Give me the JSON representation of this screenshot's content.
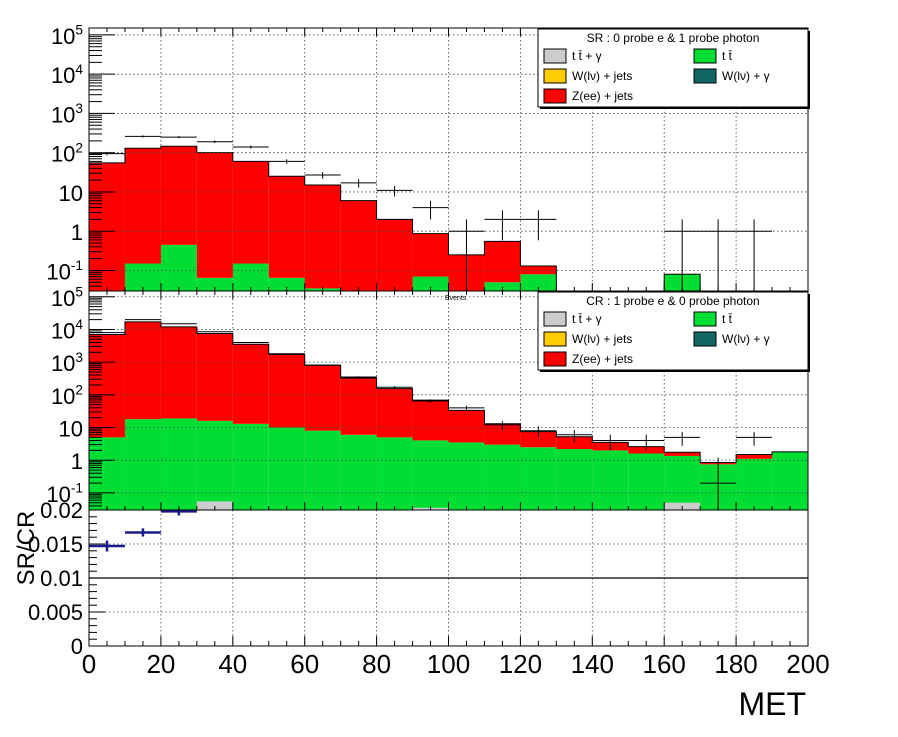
{
  "chart_data": [
    {
      "type": "bar",
      "stacked": true,
      "yscale": "log",
      "xlim": [
        0,
        200
      ],
      "ylim": [
        0.03,
        150000
      ],
      "bin_edges": [
        0,
        10,
        20,
        30,
        40,
        50,
        60,
        70,
        80,
        90,
        100,
        110,
        120,
        130,
        140,
        150,
        160,
        170,
        180,
        190,
        200
      ],
      "y_tick_labels": [
        "10^-1",
        "1",
        "10",
        "10^2",
        "10^3",
        "10^4",
        "10^5"
      ],
      "legend": {
        "title": "SR : 0 probe e & 1 probe photon",
        "placement": "top-right",
        "entries": [
          {
            "label": "t t̄ + γ",
            "color": "#cccccc"
          },
          {
            "label": "t t̄",
            "color": "#00dd33"
          },
          {
            "label": "W(lν) + jets",
            "color": "#ffcc00"
          },
          {
            "label": "W(lν) + γ",
            "color": "#116666"
          },
          {
            "label": "Z(ee) + jets",
            "color": "#ff0000"
          }
        ]
      },
      "series": [
        {
          "values": [
            0,
            0,
            0,
            0,
            0,
            0,
            0,
            0,
            0,
            0,
            0,
            0,
            0,
            0,
            0,
            0,
            0,
            0,
            0,
            0
          ],
          "color": "#cccccc"
        },
        {
          "values": [
            0,
            0.15,
            0.45,
            0.065,
            0.15,
            0.065,
            0.035,
            0.03,
            0,
            0.07,
            0,
            0.05,
            0.08,
            0,
            0,
            0,
            0.08,
            0,
            0,
            0
          ],
          "color": "#00dd33"
        },
        {
          "values": [
            0,
            0,
            0,
            0,
            0,
            0,
            0,
            0,
            0,
            0,
            0,
            0,
            0,
            0,
            0,
            0,
            0,
            0,
            0,
            0
          ],
          "color": "#ffcc00"
        },
        {
          "values": [
            0,
            0,
            0,
            0,
            0,
            0,
            0,
            0,
            0,
            0,
            0,
            0,
            0,
            0,
            0,
            0,
            0,
            0,
            0,
            0
          ],
          "color": "#116666"
        },
        {
          "values": [
            55,
            130,
            145,
            100,
            60,
            25,
            15,
            6,
            2,
            0.8,
            0.25,
            0.5,
            0.05,
            0,
            0,
            0,
            0,
            0,
            0,
            0
          ],
          "color": "#ff0000"
        }
      ],
      "data_points": {
        "x": [
          5,
          15,
          25,
          35,
          45,
          55,
          65,
          75,
          85,
          95,
          105,
          115,
          125,
          165,
          175,
          185
        ],
        "y": [
          95,
          260,
          250,
          190,
          140,
          60,
          27,
          17,
          11,
          4,
          1,
          2,
          2,
          1,
          1,
          1
        ]
      }
    },
    {
      "type": "bar",
      "stacked": true,
      "yscale": "log",
      "xlim": [
        0,
        200
      ],
      "ylim": [
        0.03,
        150000
      ],
      "bin_edges": [
        0,
        10,
        20,
        30,
        40,
        50,
        60,
        70,
        80,
        90,
        100,
        110,
        120,
        130,
        140,
        150,
        160,
        170,
        180,
        190,
        200
      ],
      "y_tick_labels": [
        "10^-1",
        "1",
        "10",
        "10^2",
        "10^3",
        "10^4",
        "10^5"
      ],
      "annotation": "Events",
      "legend": {
        "title": "CR : 1 probe e & 0 probe photon",
        "placement": "top-right",
        "entries": [
          {
            "label": "t t̄ + γ",
            "color": "#cccccc"
          },
          {
            "label": "t t̄",
            "color": "#00dd33"
          },
          {
            "label": "W(lν) + jets",
            "color": "#ffcc00"
          },
          {
            "label": "W(lν) + γ",
            "color": "#116666"
          },
          {
            "label": "Z(ee) + jets",
            "color": "#ff0000"
          }
        ]
      },
      "series": [
        {
          "values": [
            0,
            0,
            0,
            0.055,
            0,
            0,
            0,
            0,
            0,
            0.035,
            0,
            0,
            0,
            0,
            0,
            0,
            0.05,
            0,
            0,
            0
          ],
          "color": "#cccccc"
        },
        {
          "values": [
            5,
            18,
            19,
            16,
            13,
            10,
            8,
            6,
            5,
            4,
            3.5,
            3,
            2.5,
            2.2,
            2,
            1.6,
            1.3,
            0.75,
            1.1,
            1.8
          ],
          "color": "#00dd33"
        },
        {
          "values": [
            0,
            0,
            0,
            0,
            0,
            0,
            0,
            0,
            0,
            0,
            0,
            0,
            0,
            0,
            0,
            0,
            0,
            0,
            0,
            0
          ],
          "color": "#ffcc00"
        },
        {
          "values": [
            0,
            0,
            0,
            0,
            0,
            0,
            0,
            0,
            0,
            0,
            0,
            0,
            0,
            0,
            0,
            0,
            0,
            0,
            0,
            0
          ],
          "color": "#116666"
        },
        {
          "values": [
            7000,
            17000,
            12000,
            7500,
            3500,
            1700,
            800,
            320,
            150,
            65,
            30,
            10,
            5,
            3,
            1.5,
            1,
            0.4,
            0.1,
            0.4,
            0
          ],
          "color": "#ff0000"
        }
      ],
      "data_points": {
        "x": [
          5,
          15,
          25,
          35,
          45,
          55,
          65,
          75,
          85,
          95,
          105,
          115,
          125,
          135,
          145,
          155,
          165,
          175,
          185
        ],
        "y": [
          8000,
          20000,
          15000,
          8500,
          4000,
          1800,
          800,
          350,
          170,
          65,
          40,
          12,
          8,
          6,
          4,
          4,
          5,
          0.2,
          5
        ]
      }
    },
    {
      "type": "scatter",
      "xlim": [
        0,
        200
      ],
      "ylim": [
        0,
        0.02
      ],
      "x_ticks": [
        0,
        20,
        40,
        60,
        80,
        100,
        120,
        140,
        160,
        180,
        200
      ],
      "y_ticks": [
        0,
        0.005,
        0.01,
        0.015,
        0.02
      ],
      "y_tick_labels": [
        "0",
        "0.005",
        "0.01",
        "0.015",
        "0.02"
      ],
      "xlabel": "MET",
      "ylabel": "SR/CR",
      "marker_color": "#1a1a8c",
      "points": [
        {
          "x": 5,
          "y": 0.0147,
          "xerr": 5,
          "yerr": 0.0008
        },
        {
          "x": 15,
          "y": 0.0167,
          "xerr": 5,
          "yerr": 0.0006
        },
        {
          "x": 25,
          "y": 0.0198,
          "xerr": 5,
          "yerr": 0.0006
        }
      ]
    }
  ]
}
